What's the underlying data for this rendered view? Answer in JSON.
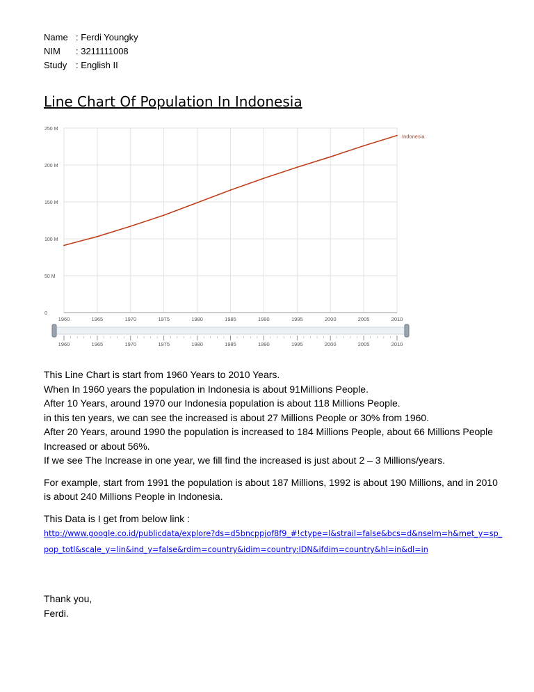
{
  "header": {
    "name_label": "Name",
    "name_value": ": Ferdi Youngky",
    "nim_label": "NIM",
    "nim_value": ": 3211111008",
    "study_label": "Study",
    "study_value": ": English II"
  },
  "title": "Line Chart Of Population In Indonesia",
  "chart_data": {
    "type": "line",
    "title": "",
    "xlabel": "",
    "ylabel": "",
    "xlim": [
      1960,
      2010
    ],
    "ylim": [
      0,
      250
    ],
    "grid": true,
    "legend_position": "top-right",
    "x_ticks": [
      "1960",
      "1965",
      "1970",
      "1975",
      "1980",
      "1985",
      "1990",
      "1995",
      "2000",
      "2005",
      "2010"
    ],
    "y_ticks": [
      "0",
      "50 M",
      "100 M",
      "150 M",
      "200 M",
      "250 M"
    ],
    "series": [
      {
        "name": "Indonesia",
        "color": "#c0401c",
        "x": [
          1960,
          1965,
          1970,
          1975,
          1980,
          1985,
          1990,
          1995,
          2000,
          2005,
          2010
        ],
        "y": [
          91,
          103,
          117,
          132,
          149,
          166,
          182,
          197,
          211,
          226,
          240
        ]
      }
    ],
    "slider_ticks": [
      "1960",
      "1965",
      "1970",
      "1975",
      "1980",
      "1985",
      "1990",
      "1995",
      "2000",
      "2005",
      "2010"
    ]
  },
  "paragraphs": [
    "This Line Chart is start from 1960 Years to 2010 Years.",
    "When In 1960 years the population in Indonesia is about 91Millions People.",
    "After 10 Years, around 1970 our Indonesia population is about 118 Millions People.",
    "in this ten years, we can see the increased is about 27 Millions People or 30% from 1960.",
    "After 20 Years, around 1990 the population is increased to 184 Millions People, about 66 Millions People Increased or about 56%.",
    "If we see The Increase in one year, we fill find the increased is just about 2 – 3 Millions/years.",
    "For example, start from 1991 the population is about 187 Millions, 1992 is about 190 Millions, and in 2010 is about 240 Millions People in Indonesia.",
    "This Data is I get from below link :"
  ],
  "link": "http://www.google.co.id/publicdata/explore?ds=d5bncppjof8f9_#!ctype=l&strail=false&bcs=d&nselm=h&met_y=sp_pop_totl&scale_y=lin&ind_y=false&rdim=country&idim=country:IDN&ifdim=country&hl=in&dl=in",
  "closing": {
    "thanks": "Thank you,",
    "signature": "Ferdi."
  }
}
